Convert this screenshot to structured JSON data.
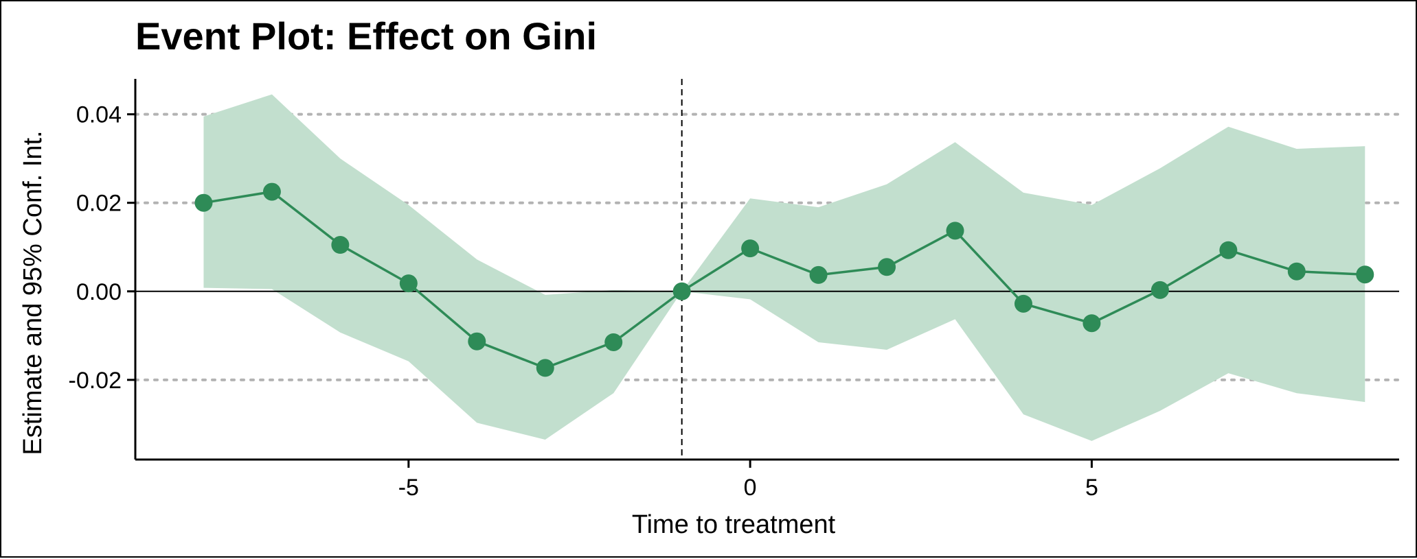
{
  "chart_data": {
    "type": "line",
    "title": "Event Plot: Effect on Gini",
    "xlabel": "Time to treatment",
    "ylabel": "Estimate and 95% Conf. Int.",
    "xlim": [
      -9.0,
      9.5
    ],
    "ylim": [
      -0.038,
      0.048
    ],
    "x_ticks": [
      -5,
      0,
      5
    ],
    "x_tick_labels": [
      "-5",
      "0",
      "5"
    ],
    "y_ticks": [
      -0.02,
      0.0,
      0.02,
      0.04
    ],
    "y_tick_labels": [
      "-0.02",
      "0.00",
      "0.02",
      "0.04"
    ],
    "grid": "horizontal dotted",
    "reference_vertical_line_x": -1,
    "reference_horizontal_line_y": 0,
    "colors": {
      "series": "#2e8b57",
      "band": "#c2dfce",
      "grid": "#b3b3b3",
      "axis": "#000000"
    },
    "series": [
      {
        "x": [
          -8,
          -7,
          -6,
          -5,
          -4,
          -3,
          -2,
          -1,
          0,
          1,
          2,
          3,
          4,
          5,
          6,
          7,
          8,
          9
        ],
        "estimate": [
          0.02,
          0.0225,
          0.0105,
          0.0018,
          -0.0113,
          -0.0173,
          -0.0115,
          0.0,
          0.0097,
          0.0037,
          0.0055,
          0.0137,
          -0.0028,
          -0.0072,
          0.0003,
          0.0093,
          0.0045,
          0.0038
        ],
        "ci_lower": [
          0.0008,
          0.0005,
          -0.0093,
          -0.0158,
          -0.0297,
          -0.0335,
          -0.023,
          0.0,
          -0.0018,
          -0.0115,
          -0.0132,
          -0.0063,
          -0.0278,
          -0.0338,
          -0.027,
          -0.0185,
          -0.023,
          -0.025
        ],
        "ci_upper": [
          0.0395,
          0.0445,
          0.03,
          0.0195,
          0.0072,
          -0.0008,
          0.0003,
          0.0,
          0.021,
          0.019,
          0.0242,
          0.0337,
          0.0223,
          0.0195,
          0.0278,
          0.0372,
          0.0322,
          0.0328
        ]
      }
    ]
  }
}
